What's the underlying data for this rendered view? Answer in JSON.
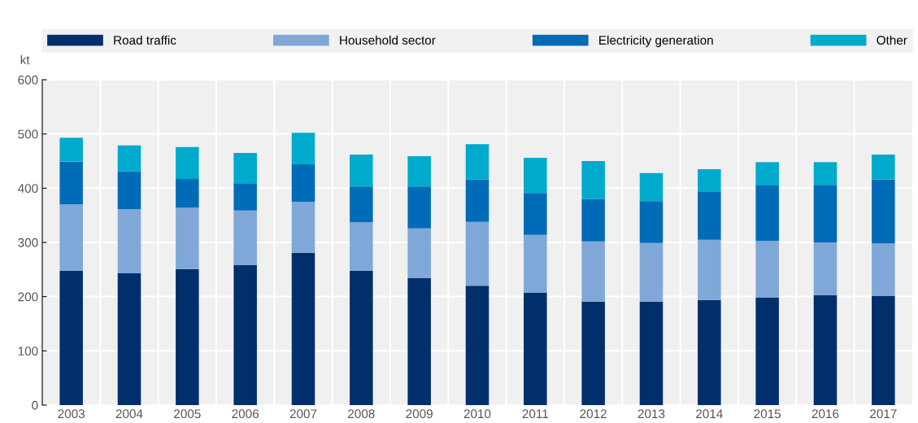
{
  "chart_data": {
    "type": "bar",
    "stacked": true,
    "ylabel": "kt",
    "categories": [
      "2003",
      "2004",
      "2005",
      "2006",
      "2007",
      "2008",
      "2009",
      "2010",
      "2011",
      "2012",
      "2013",
      "2014",
      "2015",
      "2016",
      "2017"
    ],
    "series": [
      {
        "name": "Road traffic",
        "color": "#002f6c",
        "values": [
          248,
          243,
          251,
          258,
          281,
          248,
          234,
          220,
          207,
          191,
          191,
          194,
          198,
          203,
          201
        ]
      },
      {
        "name": "Household sector",
        "color": "#7fa8d9",
        "values": [
          122,
          118,
          113,
          101,
          94,
          89,
          92,
          118,
          107,
          111,
          108,
          111,
          105,
          97,
          97
        ]
      },
      {
        "name": "Electricity generation",
        "color": "#006bb6",
        "values": [
          79,
          70,
          53,
          50,
          69,
          66,
          77,
          78,
          77,
          78,
          77,
          89,
          103,
          106,
          118
        ]
      },
      {
        "name": "Other",
        "color": "#00aacc",
        "values": [
          44,
          48,
          59,
          56,
          58,
          59,
          56,
          65,
          65,
          70,
          52,
          41,
          42,
          42,
          46
        ]
      }
    ],
    "ylim": [
      0,
      600
    ],
    "yticks": [
      0,
      100,
      200,
      300,
      400,
      500,
      600
    ],
    "grid": true,
    "legend": "top"
  }
}
